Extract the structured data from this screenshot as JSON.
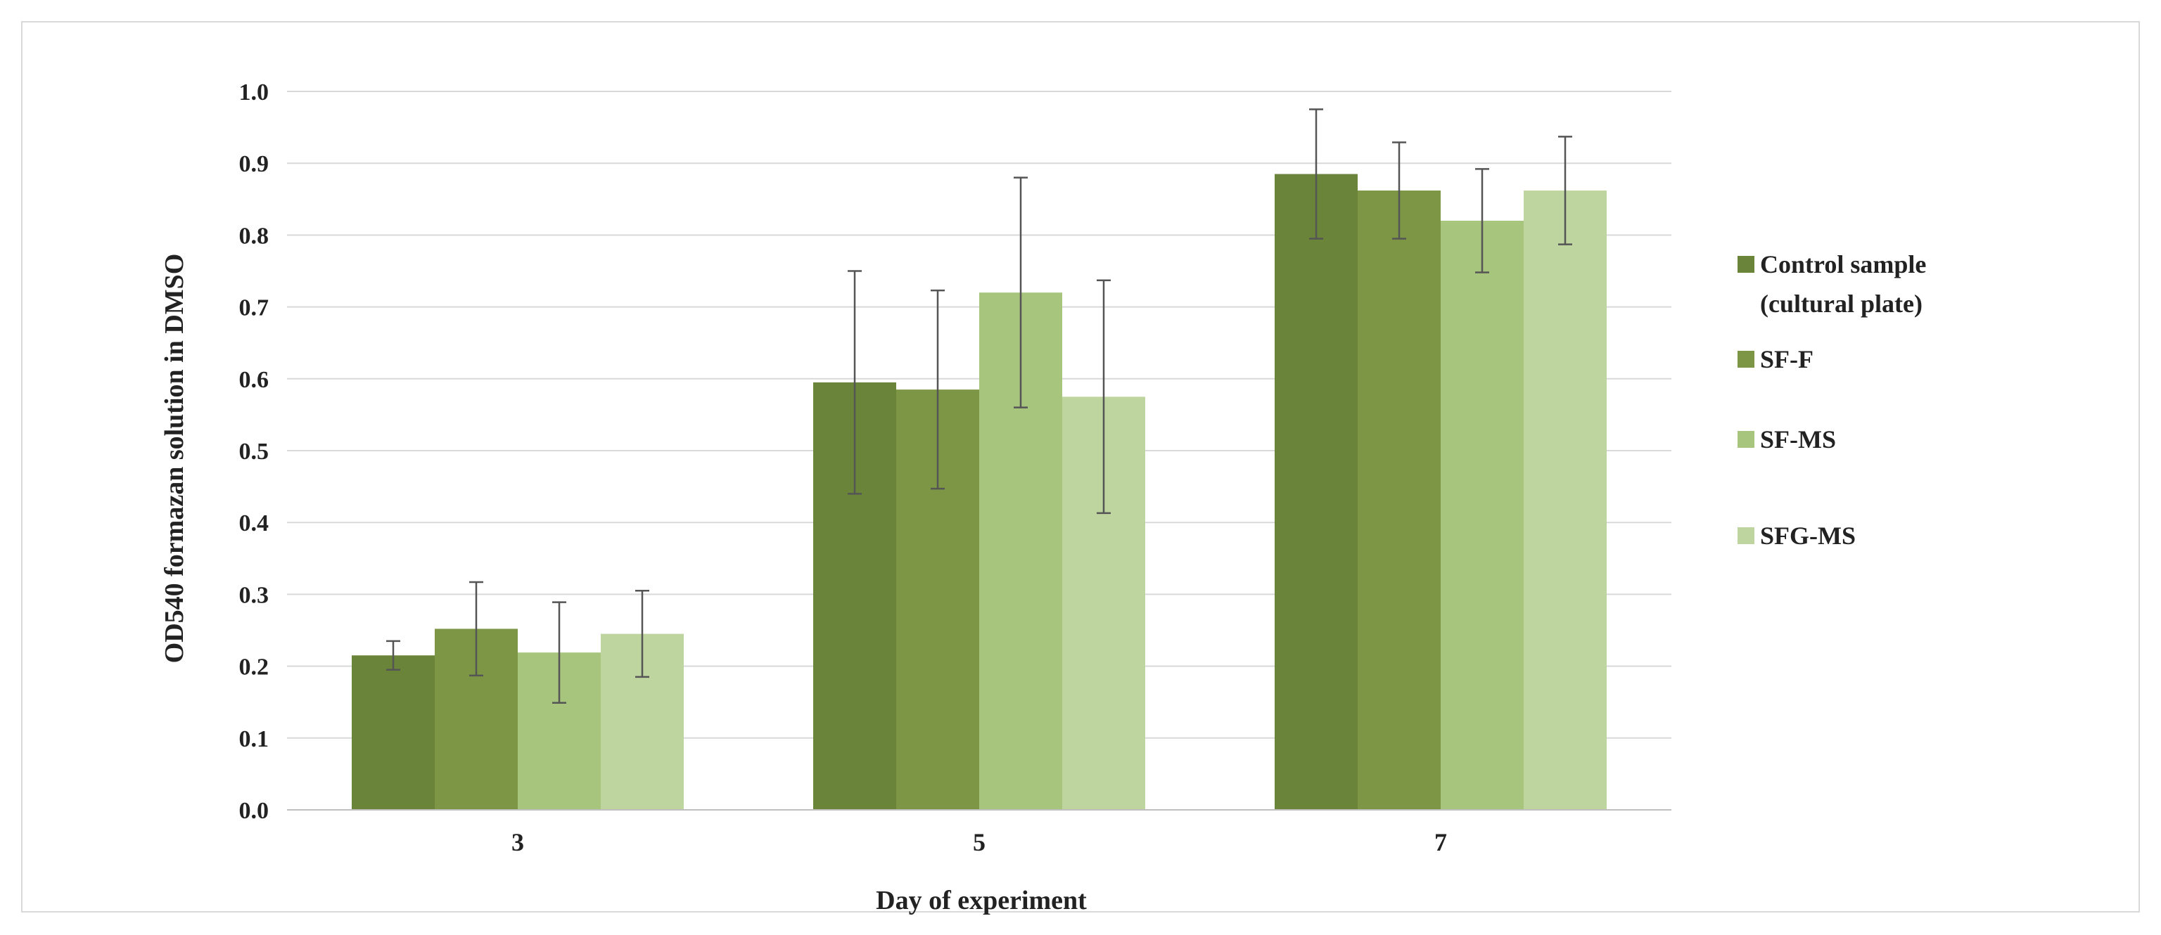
{
  "chart_data": {
    "type": "bar",
    "title": "",
    "xlabel": "Day of experiment",
    "ylabel": "OD540 formazan solution in DMSO",
    "ylim": [
      0,
      1.0
    ],
    "yticks": [
      "0.0",
      "0.1",
      "0.2",
      "0.3",
      "0.4",
      "0.5",
      "0.6",
      "0.7",
      "0.8",
      "0.9",
      "1.0"
    ],
    "categories": [
      "3",
      "5",
      "7"
    ],
    "grid": true,
    "legend_position": "right",
    "series": [
      {
        "name": "Control sample (cultural plate)",
        "legend_lines": [
          "Control sample",
          "(cultural plate)"
        ],
        "color": "#6a843a",
        "values": [
          0.215,
          0.595,
          0.885
        ],
        "errors": [
          0.02,
          0.155,
          0.09
        ]
      },
      {
        "name": "SF-F",
        "legend_lines": [
          "SF-F"
        ],
        "color": "#7c9645",
        "values": [
          0.252,
          0.585,
          0.862
        ],
        "errors": [
          0.065,
          0.138,
          0.067
        ]
      },
      {
        "name": "SF-MS",
        "legend_lines": [
          "SF-MS"
        ],
        "color": "#a7c57d",
        "values": [
          0.219,
          0.72,
          0.82
        ],
        "errors": [
          0.07,
          0.16,
          0.072
        ]
      },
      {
        "name": "SFG-MS",
        "legend_lines": [
          "SFG-MS"
        ],
        "color": "#bfd5a0",
        "values": [
          0.245,
          0.575,
          0.862
        ],
        "errors": [
          0.06,
          0.162,
          0.075
        ]
      }
    ]
  }
}
